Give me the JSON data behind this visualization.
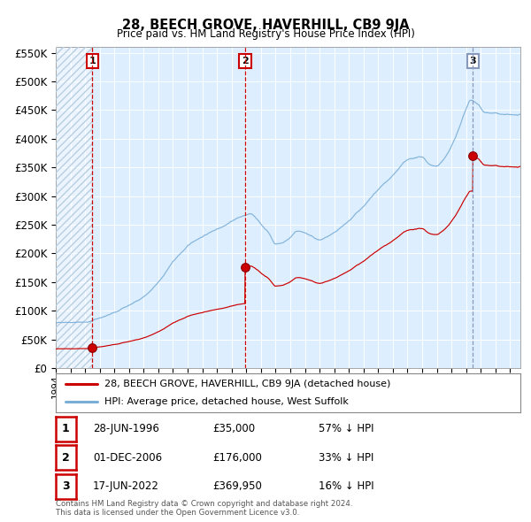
{
  "title": "28, BEECH GROVE, HAVERHILL, CB9 9JA",
  "subtitle": "Price paid vs. HM Land Registry's House Price Index (HPI)",
  "legend_line1": "28, BEECH GROVE, HAVERHILL, CB9 9JA (detached house)",
  "legend_line2": "HPI: Average price, detached house, West Suffolk",
  "sale_prices": [
    35000,
    176000,
    369950
  ],
  "sale_labels": [
    "1",
    "2",
    "3"
  ],
  "sale_label_years": [
    1996.49,
    2006.92,
    2022.46
  ],
  "footnote1": "Contains HM Land Registry data © Crown copyright and database right 2024.",
  "footnote2": "This data is licensed under the Open Government Licence v3.0.",
  "table_rows": [
    [
      "1",
      "28-JUN-1996",
      "£35,000",
      "57% ↓ HPI"
    ],
    [
      "2",
      "01-DEC-2006",
      "£176,000",
      "33% ↓ HPI"
    ],
    [
      "3",
      "17-JUN-2022",
      "£369,950",
      "16% ↓ HPI"
    ]
  ],
  "red_line_color": "#cc0000",
  "blue_line_color": "#7aaed6",
  "background_color": "#ddeeff",
  "grid_color": "#ffffff",
  "vline_color_red": "#cc0000",
  "vline_color_blue": "#8899bb",
  "ylim": [
    0,
    560000
  ],
  "xlim_start": 1994.0,
  "xlim_end": 2025.7,
  "hpi_waypoints": [
    [
      1994.0,
      78000
    ],
    [
      1995.0,
      82000
    ],
    [
      1996.0,
      83000
    ],
    [
      1997.0,
      91000
    ],
    [
      1998.0,
      100000
    ],
    [
      1999.0,
      112000
    ],
    [
      2000.0,
      128000
    ],
    [
      2001.0,
      152000
    ],
    [
      2002.0,
      188000
    ],
    [
      2003.5,
      225000
    ],
    [
      2004.5,
      240000
    ],
    [
      2005.5,
      255000
    ],
    [
      2006.5,
      270000
    ],
    [
      2007.3,
      275000
    ],
    [
      2007.7,
      268000
    ],
    [
      2008.0,
      258000
    ],
    [
      2008.5,
      245000
    ],
    [
      2009.0,
      225000
    ],
    [
      2009.5,
      228000
    ],
    [
      2010.0,
      238000
    ],
    [
      2010.5,
      248000
    ],
    [
      2011.0,
      245000
    ],
    [
      2011.5,
      238000
    ],
    [
      2012.0,
      232000
    ],
    [
      2012.5,
      237000
    ],
    [
      2013.0,
      242000
    ],
    [
      2014.0,
      262000
    ],
    [
      2015.0,
      288000
    ],
    [
      2016.0,
      315000
    ],
    [
      2017.0,
      340000
    ],
    [
      2018.0,
      365000
    ],
    [
      2019.0,
      370000
    ],
    [
      2019.5,
      358000
    ],
    [
      2020.0,
      355000
    ],
    [
      2020.5,
      368000
    ],
    [
      2021.0,
      390000
    ],
    [
      2021.5,
      420000
    ],
    [
      2022.0,
      455000
    ],
    [
      2022.3,
      470000
    ],
    [
      2022.8,
      465000
    ],
    [
      2023.3,
      450000
    ],
    [
      2024.0,
      448000
    ],
    [
      2024.5,
      445000
    ],
    [
      2025.5,
      443000
    ]
  ]
}
